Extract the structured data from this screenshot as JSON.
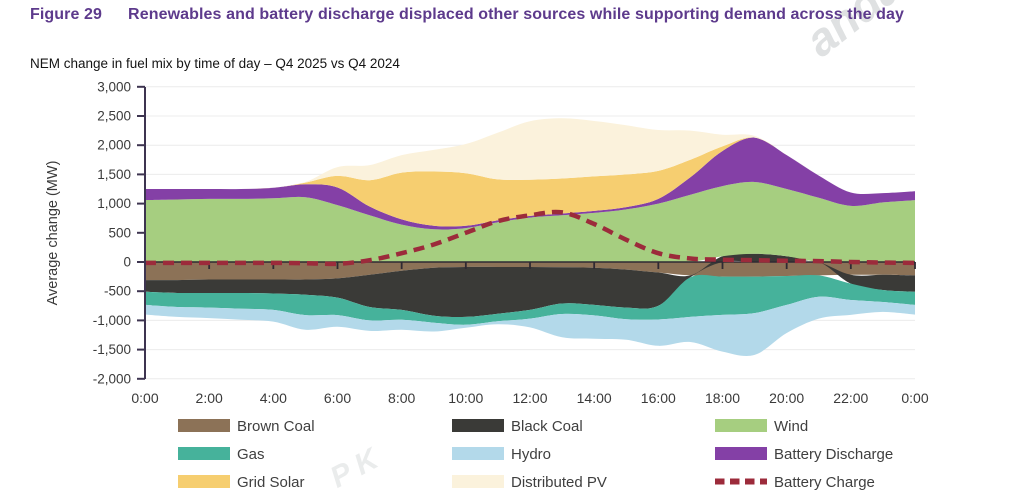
{
  "figure": {
    "label": "Figure 29",
    "title": "Renewables and battery discharge displaced other sources while supporting demand across the day",
    "subtitle": "NEM change in fuel mix by time of day – Q4 2025 vs Q4 2024"
  },
  "watermark": {
    "frag1": "anda",
    "frag2": "P K"
  },
  "chart_data": {
    "type": "area",
    "stacked": true,
    "title": "NEM change in fuel mix by time of day – Q4 2025 vs Q4 2024",
    "xlabel": "",
    "ylabel": "Average change (MW)",
    "ylim": [
      -2000,
      3000
    ],
    "grid": true,
    "legend_position": "bottom",
    "x_hours": [
      0,
      1,
      2,
      3,
      4,
      5,
      6,
      7,
      8,
      9,
      10,
      11,
      12,
      13,
      14,
      15,
      16,
      17,
      18,
      19,
      20,
      21,
      22,
      23,
      24
    ],
    "x_ticks": [
      {
        "h": 0,
        "label": "0:00"
      },
      {
        "h": 2,
        "label": "2:00"
      },
      {
        "h": 4,
        "label": "4:00"
      },
      {
        "h": 6,
        "label": "6:00"
      },
      {
        "h": 8,
        "label": "8:00"
      },
      {
        "h": 10,
        "label": "10:00"
      },
      {
        "h": 12,
        "label": "12:00"
      },
      {
        "h": 14,
        "label": "14:00"
      },
      {
        "h": 16,
        "label": "16:00"
      },
      {
        "h": 18,
        "label": "18:00"
      },
      {
        "h": 20,
        "label": "20:00"
      },
      {
        "h": 22,
        "label": "22:00"
      },
      {
        "h": 24,
        "label": "0:00"
      }
    ],
    "y_ticks": [
      {
        "v": 3000,
        "label": "3,000"
      },
      {
        "v": 2500,
        "label": "2,500"
      },
      {
        "v": 2000,
        "label": "2,000"
      },
      {
        "v": 1500,
        "label": "1,500"
      },
      {
        "v": 1000,
        "label": "1,000"
      },
      {
        "v": 500,
        "label": "500"
      },
      {
        "v": 0,
        "label": "0"
      },
      {
        "v": -500,
        "label": "-500"
      },
      {
        "v": -1000,
        "label": "-1,000"
      },
      {
        "v": -1500,
        "label": "-1,500"
      },
      {
        "v": -2000,
        "label": "-2,000"
      }
    ],
    "axis_color": "#3D3450",
    "zero_line_color": "#2F2A33",
    "grid_color": "#ececec",
    "tick_label_color": "#3a3a3a",
    "legend_text_color": "#3f3f3f",
    "stack_order": [
      "brown_coal",
      "black_coal",
      "wind",
      "battery_discharge",
      "grid_solar",
      "distributed_pv",
      "gas",
      "hydro"
    ],
    "series": {
      "brown_coal": {
        "label": "Brown Coal",
        "color": "#8C7257",
        "values": [
          -310,
          -310,
          -300,
          -300,
          -300,
          -300,
          -280,
          -220,
          -150,
          -100,
          -85,
          -85,
          -85,
          -90,
          -100,
          -130,
          -180,
          -230,
          -250,
          -250,
          -240,
          -230,
          -220,
          -220,
          -230
        ]
      },
      "black_coal": {
        "label": "Black Coal",
        "color": "#3A3A37",
        "values": [
          -200,
          -220,
          -230,
          -230,
          -240,
          -260,
          -330,
          -550,
          -670,
          -820,
          -855,
          -800,
          -735,
          -620,
          -635,
          -650,
          -570,
          -30,
          100,
          140,
          100,
          0,
          -150,
          -260,
          -280
        ]
      },
      "wind": {
        "label": "Wind",
        "color": "#A6CE80",
        "values": [
          1060,
          1070,
          1080,
          1080,
          1090,
          1110,
          975,
          800,
          640,
          560,
          580,
          680,
          760,
          800,
          840,
          900,
          1000,
          1150,
          1200,
          1230,
          1150,
          1100,
          960,
          1020,
          1060
        ]
      },
      "battery_discharge": {
        "label": "Battery Discharge",
        "color": "#8440A6",
        "values": [
          190,
          180,
          170,
          170,
          180,
          220,
          300,
          150,
          90,
          60,
          40,
          35,
          30,
          30,
          35,
          40,
          80,
          300,
          600,
          760,
          580,
          380,
          230,
          160,
          150
        ]
      },
      "grid_solar": {
        "label": "Grid Solar",
        "color": "#F6CE70",
        "values": [
          0,
          0,
          0,
          0,
          0,
          30,
          200,
          450,
          800,
          930,
          900,
          700,
          620,
          600,
          590,
          560,
          480,
          300,
          80,
          0,
          0,
          0,
          0,
          0,
          0
        ]
      },
      "distributed_pv": {
        "label": "Distributed PV",
        "color": "#FBF2DC",
        "values": [
          0,
          0,
          0,
          0,
          0,
          10,
          150,
          260,
          300,
          370,
          500,
          800,
          1000,
          1030,
          950,
          840,
          700,
          500,
          200,
          30,
          0,
          0,
          0,
          0,
          0
        ]
      },
      "gas": {
        "label": "Gas",
        "color": "#46B29B",
        "values": [
          -225,
          -240,
          -250,
          -270,
          -280,
          -350,
          -300,
          -230,
          -170,
          -120,
          -135,
          -130,
          -150,
          -180,
          -180,
          -200,
          -235,
          -680,
          -655,
          -625,
          -495,
          -365,
          -280,
          -205,
          -225
        ]
      },
      "hydro": {
        "label": "Hydro",
        "color": "#B3D9EA",
        "values": [
          -165,
          -170,
          -180,
          -190,
          -200,
          -250,
          -200,
          -180,
          -170,
          -150,
          -50,
          -50,
          -150,
          -400,
          -400,
          -350,
          -450,
          -430,
          -630,
          -715,
          -480,
          -375,
          -255,
          -170,
          -165
        ]
      }
    },
    "line_series": {
      "battery_charge": {
        "label": "Battery Charge",
        "color": "#9C2B3B",
        "dashed": true,
        "values": [
          -15,
          -15,
          -15,
          -15,
          -15,
          -20,
          -30,
          30,
          150,
          300,
          500,
          700,
          800,
          850,
          650,
          380,
          150,
          60,
          40,
          30,
          20,
          15,
          0,
          -10,
          -15
        ]
      }
    },
    "legend_columns": [
      [
        "brown_coal",
        "gas",
        "grid_solar"
      ],
      [
        "black_coal",
        "hydro",
        "distributed_pv"
      ],
      [
        "wind",
        "battery_discharge",
        "battery_charge"
      ]
    ]
  }
}
